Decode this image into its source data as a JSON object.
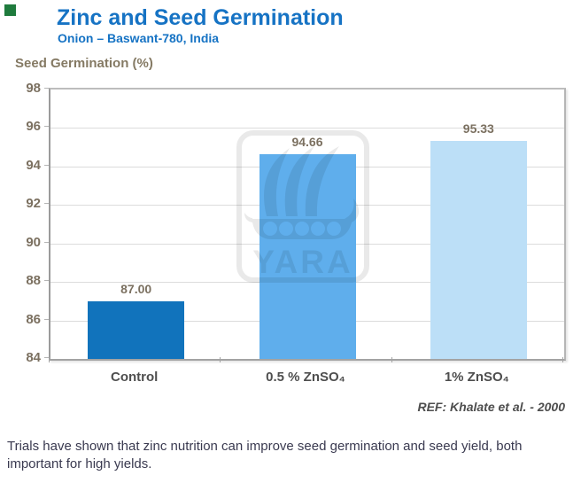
{
  "page": {
    "title": "Zinc and Seed Germination",
    "subtitle": "Onion – Baswant-780, India",
    "reference": "REF: Khalate et al. -  2000",
    "footer_text": "Trials have shown that zinc nutrition can improve seed germination and seed yield, both important for high yields."
  },
  "chart_data": {
    "type": "bar",
    "title": "Zinc and Seed Germination",
    "subtitle": "Onion – Baswant-780, India",
    "ylabel": "Seed Germination (%)",
    "xlabel": "",
    "categories": [
      "Control",
      "0.5 % ZnSO₄",
      "1% ZnSO₄"
    ],
    "values": [
      87.0,
      94.66,
      95.33
    ],
    "value_labels": [
      "87.00",
      "94.66",
      "95.33"
    ],
    "ylim": [
      84,
      98
    ],
    "yticks": [
      84,
      86,
      88,
      90,
      92,
      94,
      96,
      98
    ],
    "grid": true,
    "legend_position": "none",
    "bar_colors": [
      "#1173BC",
      "#5FAEEC",
      "#BCDFF7"
    ],
    "reference": "REF: Khalate et al. -  2000"
  },
  "branding": {
    "watermark_text": "YARA",
    "accent_green": "#1F7B3D",
    "title_blue": "#1673C4"
  }
}
